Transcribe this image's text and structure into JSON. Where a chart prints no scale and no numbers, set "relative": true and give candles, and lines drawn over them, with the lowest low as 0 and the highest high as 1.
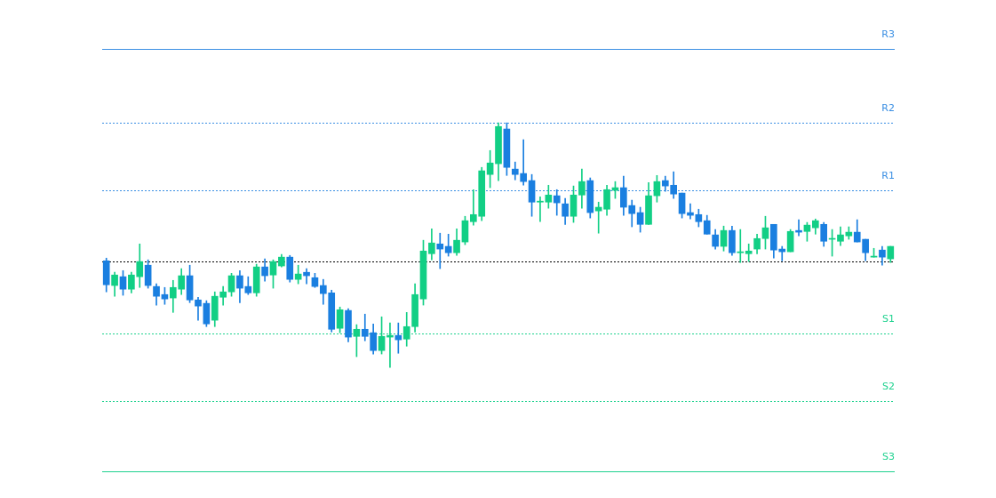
{
  "chart_data": {
    "type": "candlestick",
    "relative": true,
    "categories": [
      null,
      null,
      null,
      null,
      null,
      null,
      null,
      null,
      null,
      null,
      null,
      null,
      null,
      null,
      null,
      null,
      null,
      null,
      null,
      null,
      null,
      null,
      null,
      null,
      null,
      null,
      null,
      null,
      null,
      null,
      null,
      null,
      null,
      null,
      null,
      null,
      null,
      null,
      null,
      null,
      null,
      null,
      null,
      null,
      null,
      null,
      null,
      null,
      null,
      null,
      null,
      null,
      null,
      null,
      null,
      null,
      null,
      null,
      null,
      null,
      null,
      null,
      null,
      null,
      null,
      null,
      null,
      null,
      null,
      null,
      null,
      null,
      null,
      null,
      null,
      null,
      null,
      null,
      null,
      null,
      null,
      null,
      null,
      null,
      null,
      null,
      null,
      null,
      null,
      null,
      null,
      null,
      null,
      null,
      null
    ],
    "ohlc": [
      [
        0.436,
        0.447,
        0.309,
        0.338
      ],
      [
        0.335,
        0.389,
        0.291,
        0.378
      ],
      [
        0.371,
        0.396,
        0.295,
        0.32
      ],
      [
        0.32,
        0.389,
        0.305,
        0.378
      ],
      [
        0.371,
        0.505,
        0.327,
        0.433
      ],
      [
        0.418,
        0.44,
        0.324,
        0.335
      ],
      [
        0.331,
        0.342,
        0.255,
        0.291
      ],
      [
        0.298,
        0.327,
        0.258,
        0.28
      ],
      [
        0.284,
        0.356,
        0.225,
        0.327
      ],
      [
        0.32,
        0.404,
        0.298,
        0.375
      ],
      [
        0.375,
        0.418,
        0.265,
        0.276
      ],
      [
        0.276,
        0.287,
        0.193,
        0.251
      ],
      [
        0.262,
        0.273,
        0.167,
        0.178
      ],
      [
        0.193,
        0.309,
        0.167,
        0.291
      ],
      [
        0.287,
        0.331,
        0.255,
        0.309
      ],
      [
        0.309,
        0.385,
        0.291,
        0.375
      ],
      [
        0.375,
        0.396,
        0.265,
        0.324
      ],
      [
        0.331,
        0.371,
        0.298,
        0.305
      ],
      [
        0.305,
        0.422,
        0.291,
        0.411
      ],
      [
        0.411,
        0.444,
        0.353,
        0.375
      ],
      [
        0.378,
        0.44,
        0.324,
        0.433
      ],
      [
        0.415,
        0.462,
        0.411,
        0.451
      ],
      [
        0.451,
        0.458,
        0.349,
        0.36
      ],
      [
        0.36,
        0.418,
        0.342,
        0.382
      ],
      [
        0.389,
        0.404,
        0.342,
        0.375
      ],
      [
        0.367,
        0.385,
        0.327,
        0.331
      ],
      [
        0.335,
        0.36,
        0.258,
        0.302
      ],
      [
        0.305,
        0.316,
        0.145,
        0.156
      ],
      [
        0.16,
        0.247,
        0.142,
        0.236
      ],
      [
        0.233,
        0.24,
        0.105,
        0.124
      ],
      [
        0.127,
        0.175,
        0.044,
        0.156
      ],
      [
        0.156,
        0.218,
        0.109,
        0.127
      ],
      [
        0.142,
        0.178,
        0.055,
        0.069
      ],
      [
        0.069,
        0.207,
        0.055,
        0.127
      ],
      [
        0.124,
        0.182,
        0,
        0.131
      ],
      [
        0.131,
        0.182,
        0.058,
        0.113
      ],
      [
        0.116,
        0.225,
        0.087,
        0.167
      ],
      [
        0.167,
        0.342,
        0.145,
        0.298
      ],
      [
        0.28,
        0.52,
        0.255,
        0.476
      ],
      [
        0.465,
        0.567,
        0.44,
        0.509
      ],
      [
        0.505,
        0.549,
        0.404,
        0.484
      ],
      [
        0.495,
        0.545,
        0.455,
        0.469
      ],
      [
        0.469,
        0.567,
        0.458,
        0.52
      ],
      [
        0.513,
        0.618,
        0.502,
        0.6
      ],
      [
        0.596,
        0.727,
        0.582,
        0.625
      ],
      [
        0.618,
        0.818,
        0.6,
        0.804
      ],
      [
        0.789,
        0.887,
        0.735,
        0.836
      ],
      [
        0.833,
        1,
        0.764,
        0.985
      ],
      [
        0.975,
        1,
        0.785,
        0.818
      ],
      [
        0.811,
        0.84,
        0.767,
        0.789
      ],
      [
        0.793,
        0.931,
        0.745,
        0.76
      ],
      [
        0.764,
        0.789,
        0.618,
        0.676
      ],
      [
        0.676,
        0.698,
        0.596,
        0.68
      ],
      [
        0.676,
        0.745,
        0.651,
        0.705
      ],
      [
        0.702,
        0.727,
        0.622,
        0.673
      ],
      [
        0.669,
        0.691,
        0.585,
        0.618
      ],
      [
        0.618,
        0.742,
        0.593,
        0.705
      ],
      [
        0.705,
        0.811,
        0.651,
        0.76
      ],
      [
        0.764,
        0.775,
        0.611,
        0.633
      ],
      [
        0.64,
        0.676,
        0.549,
        0.655
      ],
      [
        0.647,
        0.745,
        0.622,
        0.727
      ],
      [
        0.724,
        0.76,
        0.691,
        0.735
      ],
      [
        0.735,
        0.782,
        0.622,
        0.655
      ],
      [
        0.662,
        0.684,
        0.575,
        0.629
      ],
      [
        0.633,
        0.655,
        0.553,
        0.585
      ],
      [
        0.585,
        0.756,
        0.585,
        0.702
      ],
      [
        0.702,
        0.785,
        0.676,
        0.76
      ],
      [
        0.764,
        0.782,
        0.72,
        0.742
      ],
      [
        0.745,
        0.8,
        0.691,
        0.709
      ],
      [
        0.713,
        0.713,
        0.611,
        0.629
      ],
      [
        0.633,
        0.669,
        0.607,
        0.622
      ],
      [
        0.625,
        0.647,
        0.575,
        0.596
      ],
      [
        0.6,
        0.622,
        0.545,
        0.545
      ],
      [
        0.542,
        0.564,
        0.484,
        0.495
      ],
      [
        0.495,
        0.578,
        0.476,
        0.56
      ],
      [
        0.56,
        0.578,
        0.458,
        0.469
      ],
      [
        0.469,
        0.564,
        0.429,
        0.473
      ],
      [
        0.465,
        0.505,
        0.433,
        0.476
      ],
      [
        0.484,
        0.545,
        0.465,
        0.527
      ],
      [
        0.527,
        0.618,
        0.484,
        0.571
      ],
      [
        0.585,
        0.585,
        0.447,
        0.48
      ],
      [
        0.484,
        0.495,
        0.436,
        0.473
      ],
      [
        0.473,
        0.564,
        0.473,
        0.556
      ],
      [
        0.56,
        0.604,
        0.538,
        0.553
      ],
      [
        0.556,
        0.593,
        0.516,
        0.582
      ],
      [
        0.571,
        0.607,
        0.545,
        0.6
      ],
      [
        0.585,
        0.593,
        0.495,
        0.516
      ],
      [
        0.524,
        0.564,
        0.455,
        0.527
      ],
      [
        0.516,
        0.575,
        0.498,
        0.542
      ],
      [
        0.538,
        0.575,
        0.524,
        0.553
      ],
      [
        0.553,
        0.604,
        0.513,
        0.513
      ],
      [
        0.524,
        0.524,
        0.436,
        0.469
      ],
      [
        0.451,
        0.487,
        0.451,
        0.455
      ],
      [
        0.48,
        0.495,
        0.418,
        0.451
      ],
      [
        0.444,
        0.495,
        0.429,
        0.495
      ]
    ],
    "colors": [
      "#1a7fe0",
      "#12cf85",
      "#1a7fe0",
      "#12cf85",
      "#12cf85",
      "#1a7fe0",
      "#1a7fe0",
      "#1a7fe0",
      "#12cf85",
      "#12cf85",
      "#1a7fe0",
      "#1a7fe0",
      "#1a7fe0",
      "#12cf85",
      "#12cf85",
      "#12cf85",
      "#1a7fe0",
      "#1a7fe0",
      "#12cf85",
      "#1a7fe0",
      "#12cf85",
      "#12cf85",
      "#1a7fe0",
      "#12cf85",
      "#1a7fe0",
      "#1a7fe0",
      "#1a7fe0",
      "#1a7fe0",
      "#12cf85",
      "#1a7fe0",
      "#12cf85",
      "#1a7fe0",
      "#1a7fe0",
      "#12cf85",
      "#12cf85",
      "#1a7fe0",
      "#12cf85",
      "#12cf85",
      "#12cf85",
      "#12cf85",
      "#1a7fe0",
      "#1a7fe0",
      "#12cf85",
      "#12cf85",
      "#12cf85",
      "#12cf85",
      "#12cf85",
      "#12cf85",
      "#1a7fe0",
      "#1a7fe0",
      "#1a7fe0",
      "#1a7fe0",
      "#12cf85",
      "#12cf85",
      "#1a7fe0",
      "#1a7fe0",
      "#12cf85",
      "#12cf85",
      "#1a7fe0",
      "#12cf85",
      "#12cf85",
      "#12cf85",
      "#1a7fe0",
      "#1a7fe0",
      "#1a7fe0",
      "#12cf85",
      "#12cf85",
      "#1a7fe0",
      "#1a7fe0",
      "#1a7fe0",
      "#1a7fe0",
      "#1a7fe0",
      "#1a7fe0",
      "#1a7fe0",
      "#12cf85",
      "#1a7fe0",
      "#12cf85",
      "#12cf85",
      "#12cf85",
      "#12cf85",
      "#1a7fe0",
      "#1a7fe0",
      "#12cf85",
      "#1a7fe0",
      "#12cf85",
      "#12cf85",
      "#1a7fe0",
      "#12cf85",
      "#12cf85",
      "#12cf85",
      "#1a7fe0",
      "#1a7fe0",
      "#12cf85",
      "#1a7fe0",
      "#12cf85"
    ],
    "ref_lines": [
      {
        "axis": "y",
        "value": 1.302,
        "label": "R3",
        "color": "#3b8fe3",
        "line_style": "solid"
      },
      {
        "axis": "y",
        "value": 1.0,
        "label": "R2",
        "color": "#3b8fe3",
        "line_style": "dotted"
      },
      {
        "axis": "y",
        "value": 0.724,
        "label": "R1",
        "color": "#3b8fe3",
        "line_style": "dotted"
      },
      {
        "axis": "y",
        "value": 0.433,
        "color": "#000000",
        "line_style": "dotted"
      },
      {
        "axis": "y",
        "value": 0.138,
        "label": "S1",
        "color": "#1fd28f",
        "line_style": "dotted"
      },
      {
        "axis": "y",
        "value": -0.138,
        "label": "S2",
        "color": "#1fd28f",
        "line_style": "dotted"
      },
      {
        "axis": "y",
        "value": -0.425,
        "label": "S3",
        "color": "#1fd28f",
        "line_style": "solid"
      }
    ],
    "legend": false
  }
}
